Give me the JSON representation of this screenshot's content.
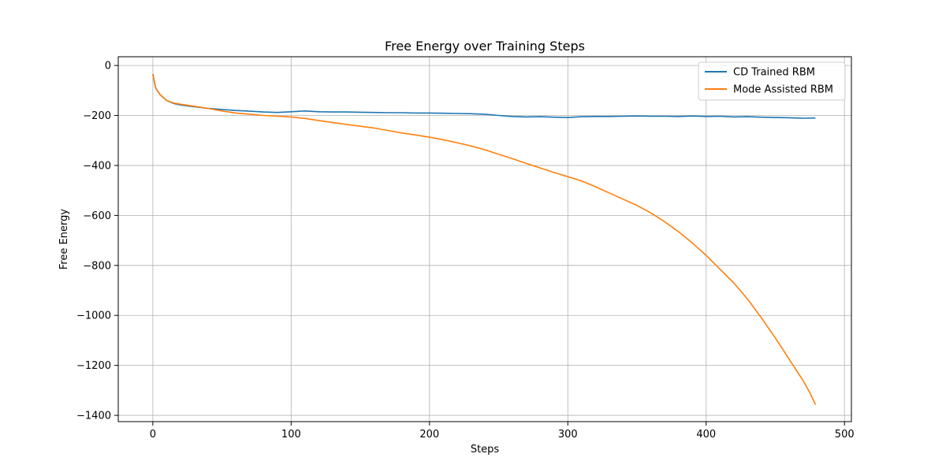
{
  "chart_data": {
    "type": "line",
    "title": "Free Energy over Training Steps",
    "xlabel": "Steps",
    "ylabel": "Free Energy",
    "xlim": [
      -25,
      505
    ],
    "ylim": [
      -1425,
      35
    ],
    "xticks": [
      0,
      100,
      200,
      300,
      400,
      500
    ],
    "yticks": [
      0,
      -200,
      -400,
      -600,
      -800,
      -1000,
      -1200,
      -1400
    ],
    "grid": true,
    "legend_position": "top-right",
    "series": [
      {
        "name": "CD Trained RBM",
        "color": "#1f77b4",
        "x": [
          0,
          2,
          5,
          10,
          15,
          20,
          30,
          40,
          50,
          60,
          70,
          80,
          90,
          100,
          110,
          120,
          130,
          140,
          150,
          160,
          170,
          180,
          190,
          200,
          210,
          220,
          230,
          240,
          250,
          260,
          270,
          280,
          290,
          300,
          310,
          320,
          330,
          340,
          350,
          360,
          370,
          380,
          390,
          400,
          410,
          420,
          430,
          440,
          450,
          460,
          470,
          479
        ],
        "y": [
          -35,
          -90,
          -115,
          -140,
          -152,
          -158,
          -165,
          -172,
          -176,
          -180,
          -183,
          -186,
          -188,
          -185,
          -182,
          -185,
          -186,
          -186,
          -187,
          -188,
          -189,
          -189,
          -190,
          -190,
          -191,
          -192,
          -193,
          -195,
          -200,
          -204,
          -206,
          -205,
          -207,
          -208,
          -205,
          -204,
          -204,
          -203,
          -202,
          -203,
          -203,
          -204,
          -202,
          -204,
          -203,
          -206,
          -205,
          -207,
          -208,
          -209,
          -211,
          -210
        ]
      },
      {
        "name": "Mode Assisted RBM",
        "color": "#ff7f0e",
        "x": [
          0,
          2,
          5,
          10,
          15,
          20,
          30,
          40,
          50,
          60,
          70,
          80,
          90,
          100,
          110,
          120,
          130,
          140,
          150,
          160,
          170,
          180,
          190,
          200,
          210,
          220,
          230,
          240,
          250,
          260,
          270,
          280,
          290,
          300,
          310,
          320,
          330,
          340,
          350,
          360,
          370,
          380,
          390,
          400,
          410,
          420,
          430,
          440,
          450,
          460,
          470,
          475,
          479
        ],
        "y": [
          -35,
          -90,
          -115,
          -140,
          -150,
          -155,
          -163,
          -172,
          -182,
          -190,
          -195,
          -200,
          -203,
          -206,
          -212,
          -220,
          -228,
          -236,
          -243,
          -250,
          -260,
          -270,
          -278,
          -287,
          -297,
          -309,
          -322,
          -337,
          -355,
          -373,
          -392,
          -410,
          -428,
          -445,
          -462,
          -485,
          -510,
          -535,
          -560,
          -590,
          -625,
          -665,
          -710,
          -760,
          -815,
          -870,
          -935,
          -1010,
          -1090,
          -1175,
          -1260,
          -1310,
          -1357
        ]
      }
    ]
  }
}
